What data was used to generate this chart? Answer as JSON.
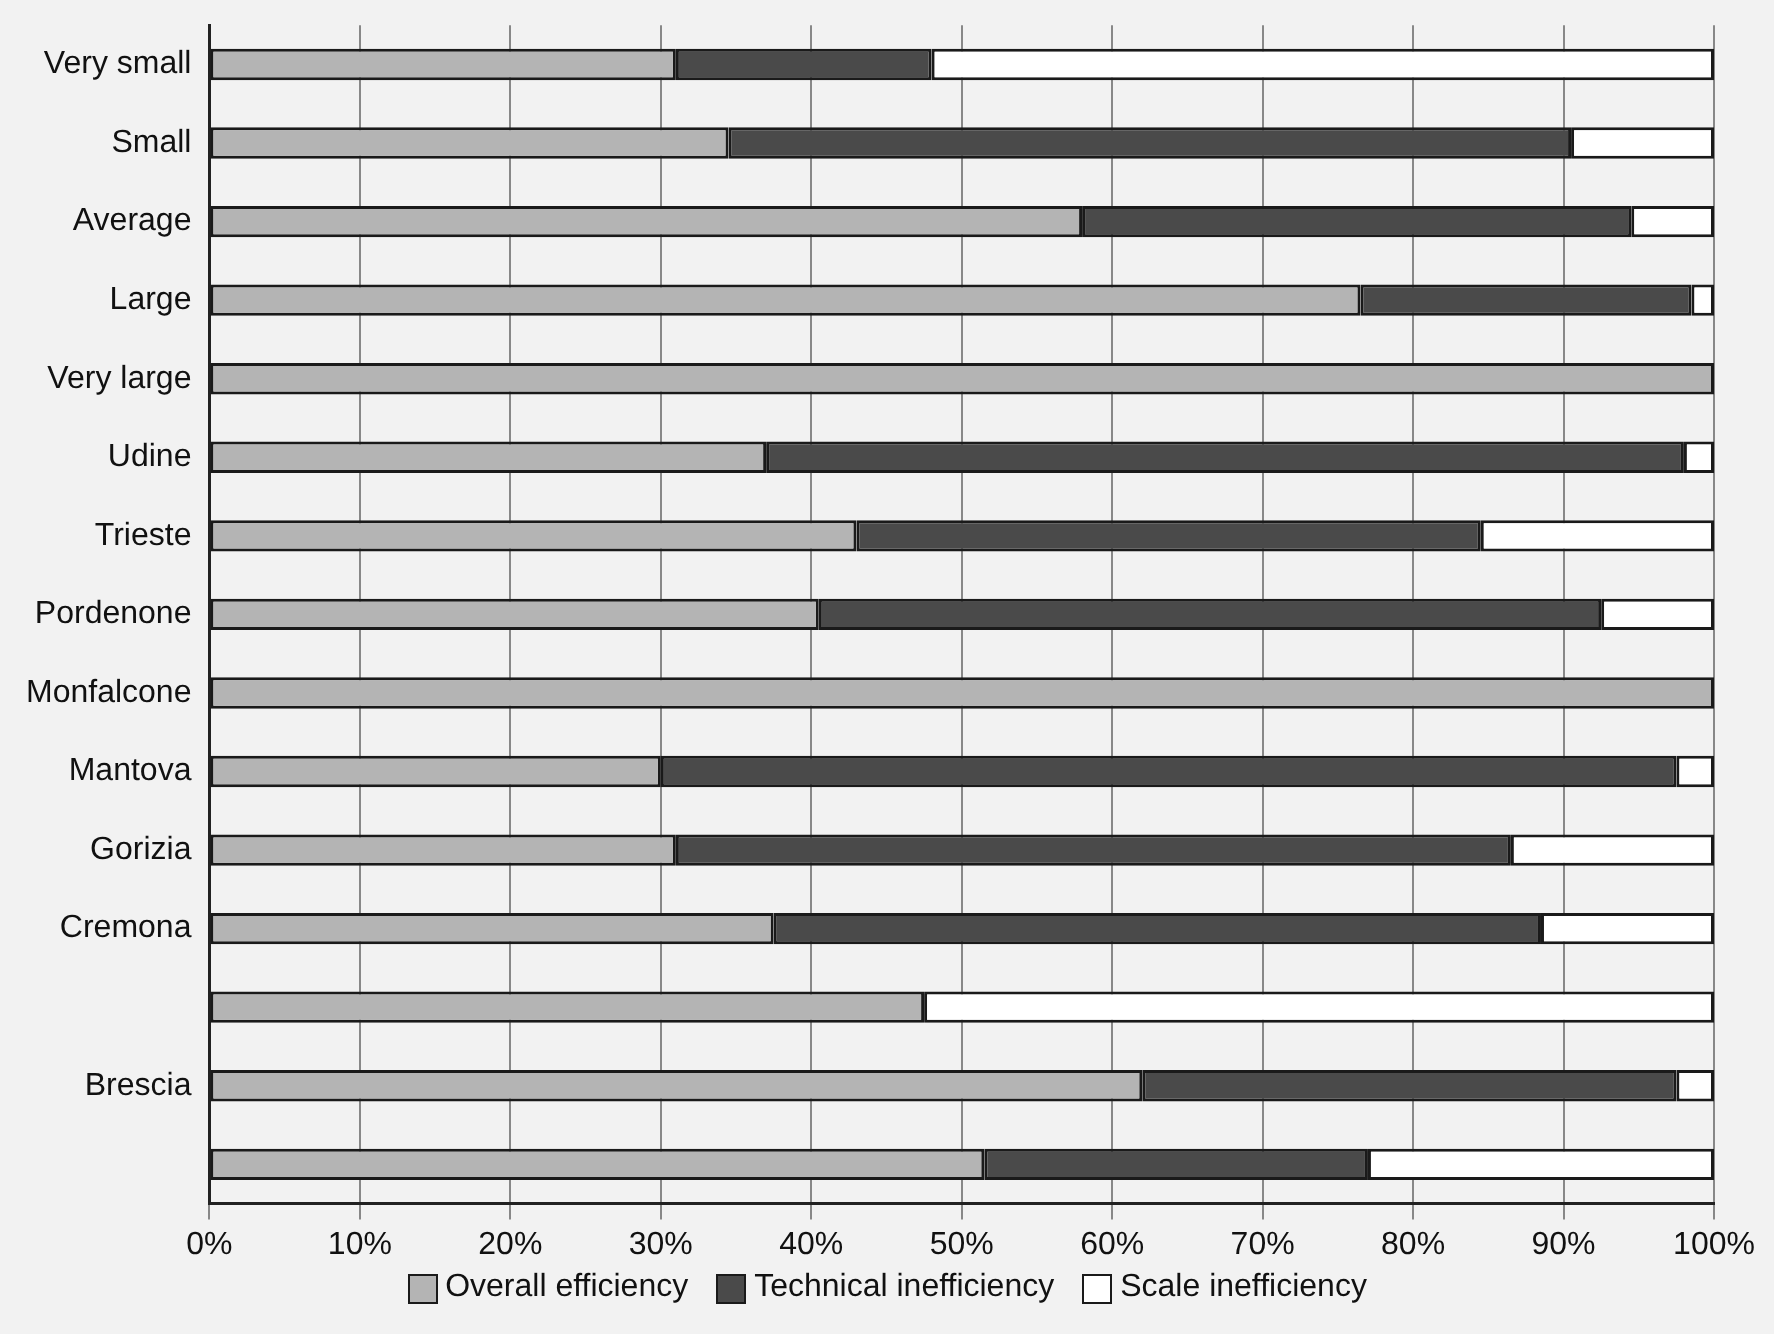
{
  "chart_data": {
    "type": "bar",
    "orientation": "horizontal",
    "stacked": true,
    "categories": [
      "Very small",
      "Small",
      "Average",
      "Large",
      "Very large",
      "Udine",
      "Trieste",
      "Pordenone",
      "Monfalcone",
      "Mantova",
      "Gorizia",
      "Cremona",
      null,
      "Brescia",
      null
    ],
    "series": [
      {
        "name": "Overall efficiency",
        "color": "#b4b4b4",
        "values": [
          31,
          34.5,
          58,
          76.5,
          100,
          37,
          43,
          40.5,
          100,
          30,
          31,
          37.5,
          47.5,
          62,
          51.5
        ]
      },
      {
        "name": "Technical inefficiency",
        "color": "#4a4a4a",
        "values": [
          17,
          56,
          36.5,
          22,
          0,
          61,
          41.5,
          52,
          0,
          67.5,
          55.5,
          51,
          0,
          35.5,
          25.5
        ]
      },
      {
        "name": "Scale inefficiency",
        "color": "#ffffff",
        "values": [
          52,
          9.5,
          5.5,
          1.5,
          0,
          2,
          15.5,
          7.5,
          0,
          2.5,
          13.5,
          11.5,
          52.5,
          2.5,
          23
        ]
      }
    ],
    "xlim": [
      0,
      100
    ],
    "xticks": [
      {
        "value": 0,
        "label": "0%"
      },
      {
        "value": 10,
        "label": "10%"
      },
      {
        "value": 20,
        "label": "20%"
      },
      {
        "value": 30,
        "label": "30%"
      },
      {
        "value": 40,
        "label": "40%"
      },
      {
        "value": 50,
        "label": "50%"
      },
      {
        "value": 60,
        "label": "60%"
      },
      {
        "value": 70,
        "label": "70%"
      },
      {
        "value": 80,
        "label": "80%"
      },
      {
        "value": 90,
        "label": "90%"
      },
      {
        "value": 100,
        "label": "100%"
      }
    ],
    "grid": "x",
    "legend": "bottom"
  }
}
